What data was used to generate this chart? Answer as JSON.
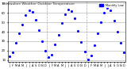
{
  "title": "Milwaukee Weather Outdoor Temperature",
  "subtitle": "Monthly Low",
  "title_fontsize": 4.5,
  "legend_label": "Monthly Low",
  "legend_color": "#0000ff",
  "line_color": "#0000ff",
  "background_color": "#ffffff",
  "plot_bg_color": "#ffffff",
  "values": [
    14,
    18,
    28,
    38,
    48,
    58,
    63,
    61,
    53,
    42,
    30,
    20,
    13,
    16,
    27,
    37,
    49,
    59,
    64,
    62,
    54,
    41,
    29,
    19,
    11,
    15,
    26,
    38,
    50,
    60,
    65,
    63,
    52,
    40,
    28,
    18
  ],
  "ylim": [
    8,
    72
  ],
  "yticks": [
    10,
    20,
    30,
    40,
    50,
    60,
    70
  ],
  "grid_color": "#aaaaaa",
  "dot_size": 2.5,
  "vline_positions": [
    11.5,
    23.5
  ]
}
